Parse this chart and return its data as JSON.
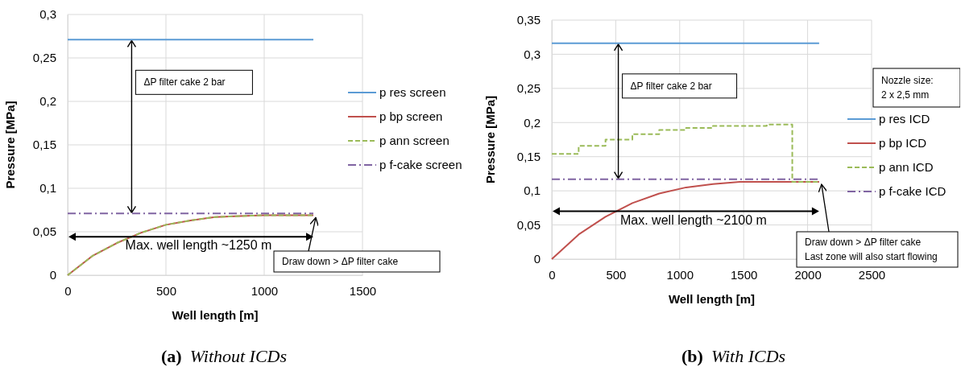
{
  "chart_data": [
    {
      "type": "line",
      "title": "(a) Without ICDs",
      "xlabel": "Well length [m]",
      "ylabel": "Pressure [MPa]",
      "xlim": [
        0,
        1500
      ],
      "xticks": [
        0,
        500,
        1000,
        1500
      ],
      "ylim": [
        0,
        0.3
      ],
      "yticks": [
        0,
        {
          "value": 0.05,
          "label": "0,05"
        },
        {
          "value": 0.1,
          "label": "0,1"
        },
        {
          "value": 0.15,
          "label": "0,15"
        },
        {
          "value": 0.2,
          "label": "0,2"
        },
        {
          "value": 0.25,
          "label": "0,25"
        },
        {
          "value": 0.3,
          "label": "0,3"
        }
      ],
      "grid": true,
      "legend": "right",
      "series": [
        {
          "name": "p res screen",
          "color": "#5b9bd5",
          "line_style": "solid",
          "x": [
            0,
            1250
          ],
          "values": [
            0.271,
            0.271
          ]
        },
        {
          "name": "p bp screen",
          "color": "#c0504d",
          "line_style": "solid",
          "x": [
            0,
            125,
            250,
            375,
            500,
            625,
            750,
            875,
            1000,
            1125,
            1250
          ],
          "values": [
            0,
            0.022,
            0.037,
            0.049,
            0.058,
            0.063,
            0.067,
            0.068,
            0.069,
            0.069,
            0.069
          ]
        },
        {
          "name": "p ann screen",
          "color": "#9bbb59",
          "line_style": "dashed",
          "x": [
            0,
            125,
            250,
            375,
            500,
            625,
            750,
            875,
            1000,
            1125,
            1250
          ],
          "values": [
            0,
            0.022,
            0.037,
            0.049,
            0.058,
            0.063,
            0.067,
            0.068,
            0.069,
            0.069,
            0.069
          ]
        },
        {
          "name": "p f-cake screen",
          "color": "#8064a2",
          "line_style": "dashdot",
          "x": [
            0,
            1250
          ],
          "values": [
            0.071,
            0.071
          ]
        }
      ],
      "annotations": [
        "ΔP filter cake 2 bar",
        "Max. well length ~1250 m",
        {
          "text": "Draw down > ΔP filter cake",
          "x": 1250,
          "y": 0.069
        }
      ]
    },
    {
      "type": "line",
      "title": "(b) With ICDs",
      "xlabel": "Well length [m]",
      "ylabel": "Pressure [MPa]",
      "xlim": [
        0,
        2500
      ],
      "xticks": [
        0,
        500,
        1000,
        1500,
        2000,
        2500
      ],
      "ylim": [
        0,
        0.35
      ],
      "yticks": [
        0,
        {
          "value": 0.05,
          "label": "0,05"
        },
        {
          "value": 0.1,
          "label": "0,1"
        },
        {
          "value": 0.15,
          "label": "0,15"
        },
        {
          "value": 0.2,
          "label": "0,2"
        },
        {
          "value": 0.25,
          "label": "0,25"
        },
        {
          "value": 0.3,
          "label": "0,3"
        },
        {
          "value": 0.35,
          "label": "0,35"
        }
      ],
      "grid": true,
      "legend": "right",
      "series": [
        {
          "name": "p res ICD",
          "color": "#5b9bd5",
          "line_style": "solid",
          "x": [
            0,
            2090
          ],
          "values": [
            0.316,
            0.316
          ]
        },
        {
          "name": "p bp ICD",
          "color": "#c0504d",
          "line_style": "solid",
          "x": [
            0,
            210,
            420,
            630,
            840,
            1050,
            1260,
            1470,
            1680,
            1880,
            2090
          ],
          "values": [
            0,
            0.036,
            0.062,
            0.082,
            0.096,
            0.105,
            0.11,
            0.113,
            0.113,
            0.113,
            0.113
          ]
        },
        {
          "name": "p ann ICD",
          "type": "step",
          "color": "#9bbb59",
          "line_style": "dashed",
          "x": [
            0,
            210,
            420,
            630,
            840,
            1050,
            1260,
            1470,
            1680,
            1880,
            2090
          ],
          "values": [
            0.154,
            0.166,
            0.175,
            0.183,
            0.189,
            0.192,
            0.195,
            0.195,
            0.197,
            0.113,
            0.113
          ]
        },
        {
          "name": "p f-cake ICD",
          "color": "#8064a2",
          "line_style": "dashdot",
          "x": [
            0,
            2090
          ],
          "values": [
            0.117,
            0.117
          ]
        }
      ],
      "annotations": [
        "ΔP filter cake 2 bar",
        "Max. well length ~2100 m",
        {
          "text": "Draw down > ΔP filter cake\nLast zone will also start flowing",
          "x": 2090,
          "y": 0.113
        },
        "Nozzle size:\n2 x 2,5 mm"
      ]
    }
  ]
}
